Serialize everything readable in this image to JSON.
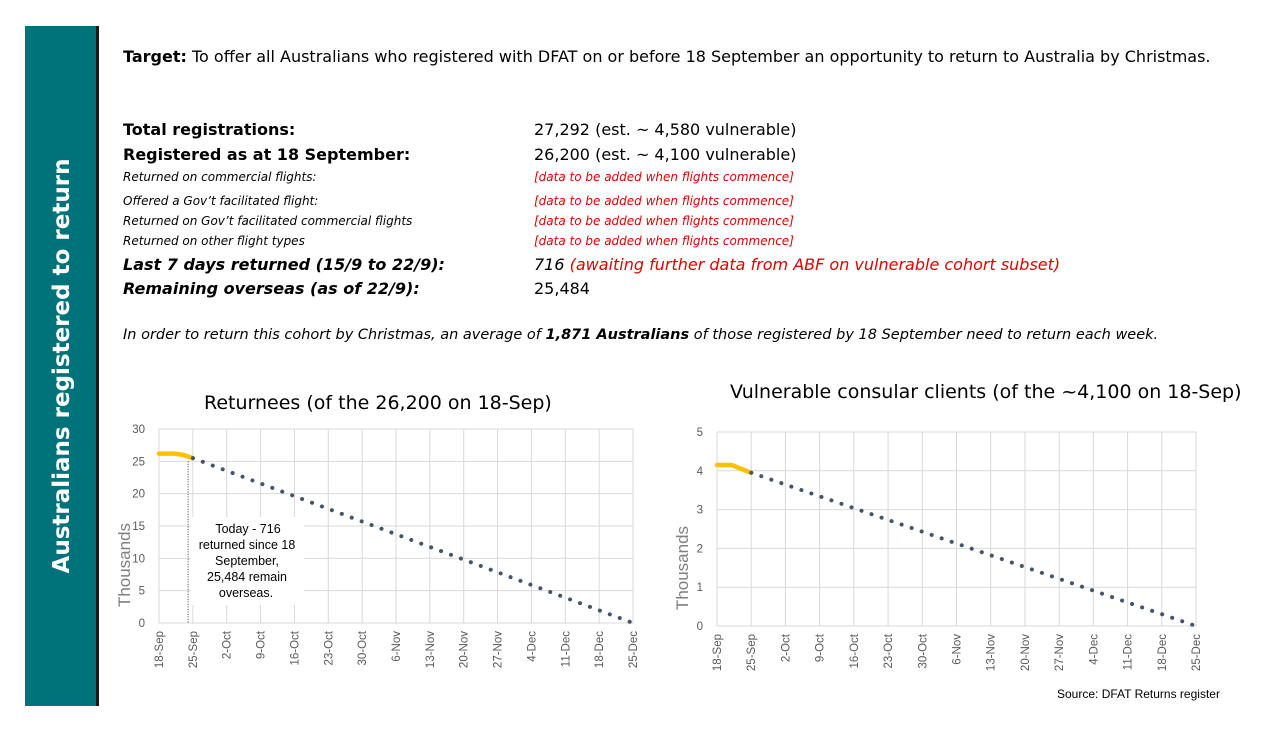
{
  "sidebar": {
    "title": "Australians registered to return"
  },
  "target": {
    "label": "Target:",
    "text": " To offer all Australians who registered with DFAT on or before 18 September an opportunity to return to Australia by Christmas."
  },
  "stats": [
    {
      "label": "Total registrations:",
      "value": "27,292  (est. ~ 4,580 vulnerable)",
      "style": "big"
    },
    {
      "label": "Registered as at 18 September:",
      "value": "26,200 (est. ~ 4,100 vulnerable)",
      "style": "big"
    },
    {
      "label": "Returned on commercial flights:",
      "value": "[data to be added when flights commence]",
      "style": "small"
    },
    {
      "label": "Offered a Gov’t facilitated flight:",
      "value": "[data to be added when flights commence]",
      "style": "small"
    },
    {
      "label": "Returned on Gov’t facilitated commercial flights",
      "value": "[data to be added when flights commence]",
      "style": "small"
    },
    {
      "label": "Returned on other flight types",
      "value": "[data to be added when flights commence]",
      "style": "small"
    },
    {
      "label": "Last 7 days returned (15/9 to 22/9):",
      "value": "716",
      "value_extra": " (awaiting further data from ABF on vulnerable cohort subset)",
      "style": "bi"
    },
    {
      "label": "Remaining overseas (as of 22/9):",
      "value": "25,484",
      "style": "bi"
    }
  ],
  "note": {
    "prefix": "In order to return this cohort by Christmas, an average of ",
    "bold": "1,871 Australians",
    "suffix": " of those registered by 18 September need to return each week."
  },
  "chart_data": [
    {
      "type": "line",
      "title": "Returnees (of the 26,200 on 18-Sep)",
      "ylabel": "Thousands",
      "xlabel": "",
      "ylim": [
        0,
        30
      ],
      "yticks": [
        0,
        5,
        10,
        15,
        20,
        25,
        30
      ],
      "categories": [
        "18-Sep",
        "25-Sep",
        "2-Oct",
        "9-Oct",
        "16-Oct",
        "23-Oct",
        "30-Oct",
        "6-Nov",
        "13-Nov",
        "20-Nov",
        "27-Nov",
        "4-Dec",
        "11-Dec",
        "18-Dec",
        "25-Dec"
      ],
      "grid": true,
      "series": [
        {
          "color": "#ffc000",
          "style": "solid",
          "points": [
            [
              0,
              26.2
            ],
            [
              0.43,
              26.2
            ],
            [
              0.71,
              26.0
            ],
            [
              1,
              25.5
            ]
          ]
        },
        {
          "color": "#44546a",
          "style": "dotted",
          "points": [
            [
              1,
              25.5
            ],
            [
              14,
              0
            ]
          ]
        }
      ],
      "annotation": {
        "text_lines": [
          "Today  - 716",
          "returned since 18",
          "September,",
          "25,484 remain",
          "overseas."
        ],
        "x": 0.86
      }
    },
    {
      "type": "line",
      "title": "Vulnerable consular clients (of the ~4,100 on 18-Sep)",
      "ylabel": "Thousands",
      "xlabel": "",
      "ylim": [
        0,
        5
      ],
      "yticks": [
        0,
        1,
        2,
        3,
        4,
        5
      ],
      "categories": [
        "18-Sep",
        "25-Sep",
        "2-Oct",
        "9-Oct",
        "16-Oct",
        "23-Oct",
        "30-Oct",
        "6-Nov",
        "13-Nov",
        "20-Nov",
        "27-Nov",
        "4-Dec",
        "11-Dec",
        "18-Dec",
        "25-Dec"
      ],
      "grid": true,
      "series": [
        {
          "color": "#ffc000",
          "style": "solid",
          "points": [
            [
              0,
              4.15
            ],
            [
              0.43,
              4.15
            ],
            [
              0.71,
              4.05
            ],
            [
              1,
              3.95
            ]
          ]
        },
        {
          "color": "#44546a",
          "style": "dotted",
          "points": [
            [
              1,
              3.95
            ],
            [
              14,
              0
            ]
          ]
        }
      ]
    }
  ],
  "source": "Source: DFAT Returns register"
}
